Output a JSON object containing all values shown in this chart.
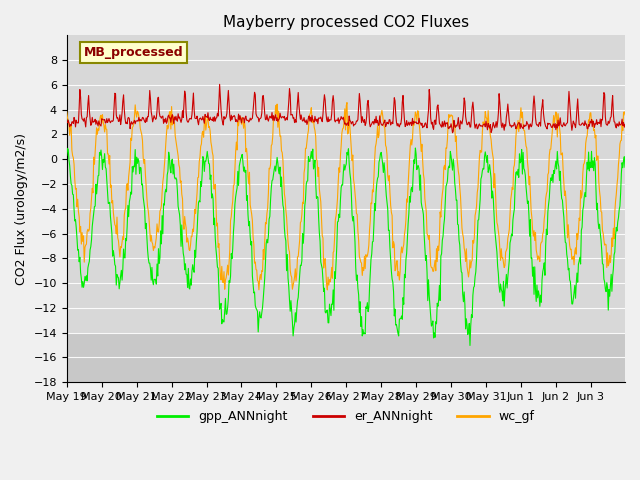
{
  "title": "Mayberry processed CO2 Fluxes",
  "ylabel": "CO2 Flux (urology/m2/s)",
  "annotation": "MB_processed",
  "legend_labels": [
    "gpp_ANNnight",
    "er_ANNnight",
    "wc_gf"
  ],
  "line_colors": [
    "#00ee00",
    "#cc0000",
    "#ffa500"
  ],
  "ylim": [
    -18,
    10
  ],
  "yticks": [
    -18,
    -16,
    -14,
    -12,
    -10,
    -8,
    -6,
    -4,
    -2,
    0,
    2,
    4,
    6,
    8
  ],
  "fig_bg": "#f0f0f0",
  "ax_bg": "#d8d8d8",
  "band_color": "#c8c8c8",
  "n_days": 16,
  "ppd": 48,
  "start_year": 2000,
  "start_month": 5,
  "start_day": 19
}
